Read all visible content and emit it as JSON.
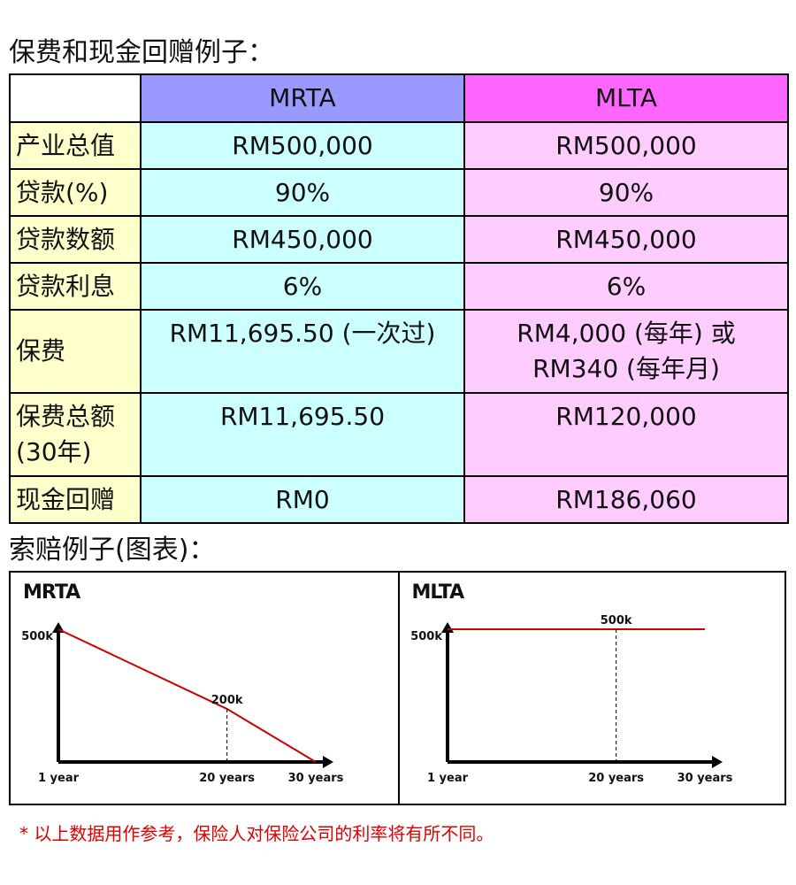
{
  "headings": {
    "premium_example": "保费和现金回赠例子：",
    "claim_example": "索赔例子(图表)："
  },
  "table": {
    "header": {
      "blank": "",
      "mrta": "MRTA",
      "mlta": "MLTA"
    },
    "rows": [
      {
        "label": "产业总值",
        "mrta": "RM500,000",
        "mlta": "RM500,000"
      },
      {
        "label": "贷款(%)",
        "mrta": "90%",
        "mlta": "90%"
      },
      {
        "label": "贷款数额",
        "mrta": "RM450,000",
        "mlta": "RM450,000"
      },
      {
        "label": "贷款利息",
        "mrta": "6%",
        "mlta": "6%"
      },
      {
        "label": "保费",
        "mrta": "RM11,695.50 (一次过)",
        "mlta_line1": "RM4,000 (每年) 或",
        "mlta_line2": "RM340 (每年月)"
      },
      {
        "label_line1": "保费总额",
        "label_line2": "(30年)",
        "mrta": "RM11,695.50",
        "mlta": "RM120,000"
      },
      {
        "label": "现金回赠",
        "mrta": "RM0",
        "mlta": "RM186,060"
      }
    ]
  },
  "chart_data": [
    {
      "type": "line",
      "title": "MRTA",
      "x_tick_labels": [
        "1 year",
        "20 years",
        "30 years"
      ],
      "x_years": [
        1,
        20,
        30
      ],
      "y_label_top": "500k",
      "series": [
        {
          "values_k": [
            500,
            200,
            0
          ]
        }
      ],
      "annotation": "200k",
      "marker_x": 20,
      "line_color": "#cc0000"
    },
    {
      "type": "line",
      "title": "MLTA",
      "x_tick_labels": [
        "1 year",
        "20 years",
        "30 years"
      ],
      "x_years": [
        1,
        20,
        30
      ],
      "y_label_top": "500k",
      "series": [
        {
          "values_k": [
            500,
            500,
            500
          ]
        }
      ],
      "annotation": "500k",
      "marker_x": 20,
      "line_color": "#cc0000"
    }
  ],
  "note": "* 以上数据用作参考，保险人对保险公司的利率将有所不同。"
}
